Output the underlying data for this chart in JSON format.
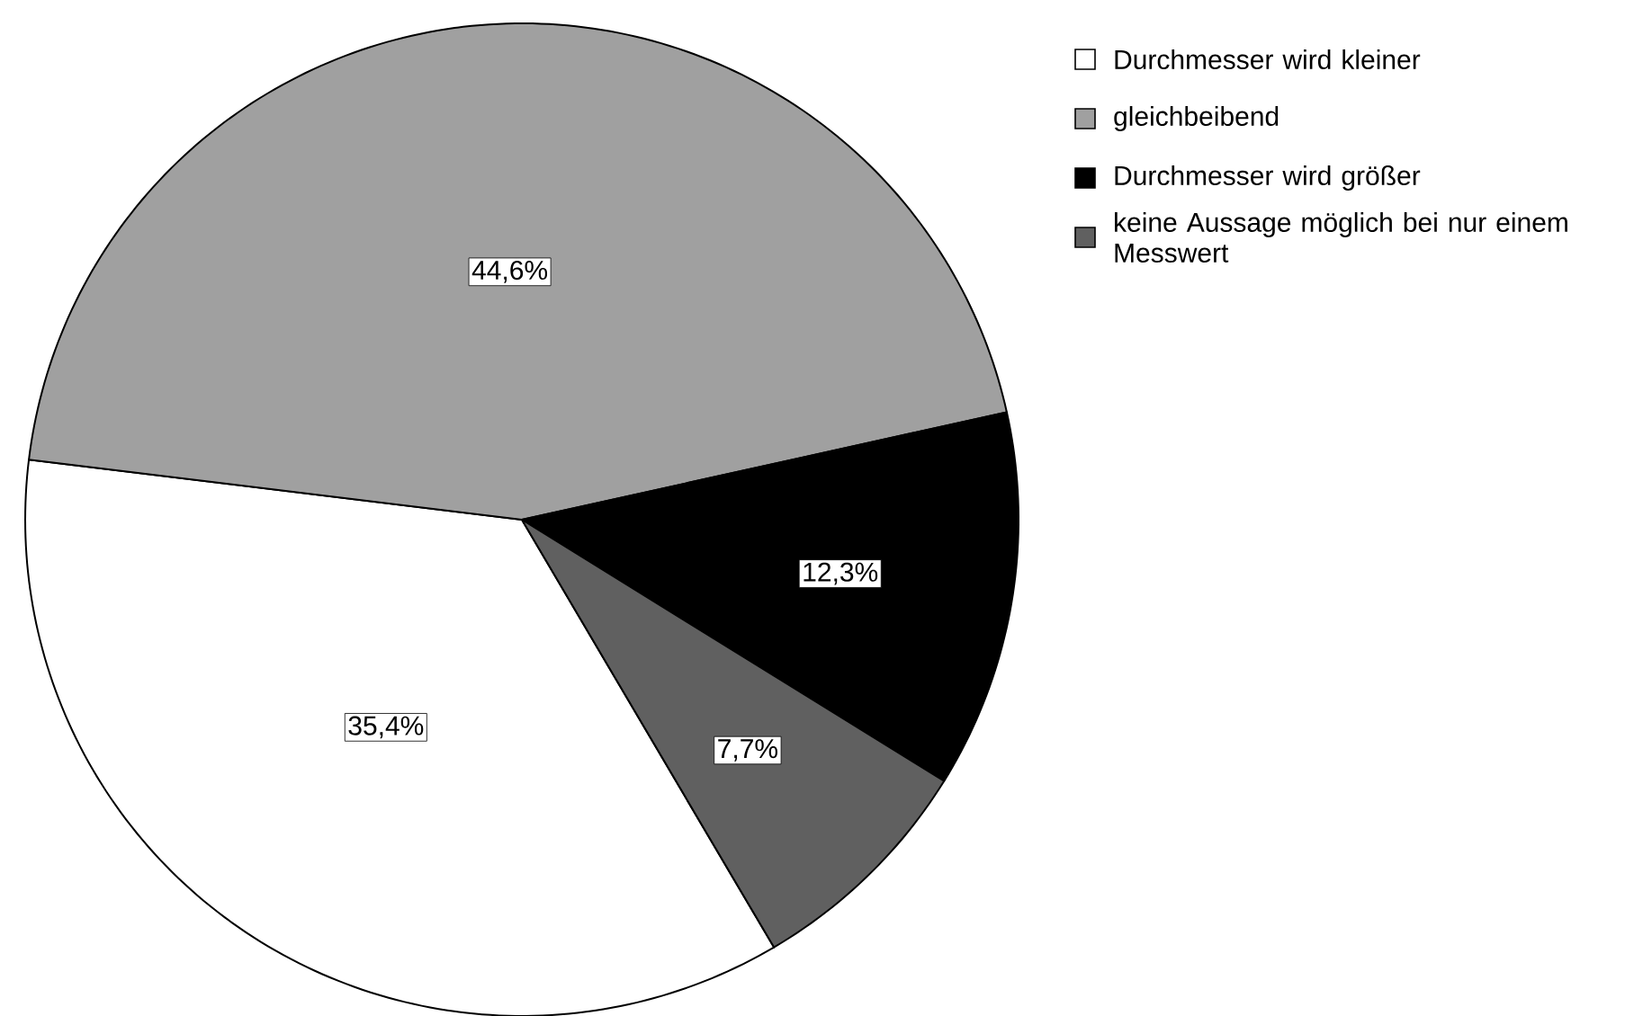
{
  "chart_data": {
    "type": "pie",
    "categories": [
      "Durchmesser wird kleiner",
      "gleichbeibend",
      "Durchmesser wird größer",
      "keine Aussage möglich bei nur einem Messwert"
    ],
    "values": [
      35.4,
      44.6,
      12.3,
      7.7
    ],
    "colors": [
      "#ffffff",
      "#a0a0a0",
      "#000000",
      "#606060"
    ],
    "value_labels": [
      "35,4%",
      "44,6%",
      "12,3%",
      "7,7%"
    ],
    "legend": "top right"
  }
}
